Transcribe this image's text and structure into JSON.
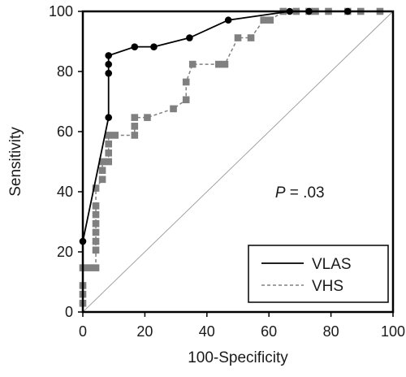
{
  "chart_data": {
    "type": "line",
    "xlabel": "100-Specificity",
    "ylabel": "Sensitivity",
    "xlim": [
      0,
      100
    ],
    "ylim": [
      0,
      100
    ],
    "x_ticks": [
      "0",
      "20",
      "40",
      "60",
      "80",
      "100"
    ],
    "y_ticks": [
      "0",
      "20",
      "40",
      "60",
      "80",
      "100"
    ],
    "grid": false,
    "legend_position": "bottom-right",
    "annotation": {
      "italic": "P",
      "rest": " = .03"
    },
    "reference_line": {
      "from": [
        0,
        0
      ],
      "to": [
        100,
        100
      ],
      "color": "#999999"
    },
    "series": [
      {
        "name": "VLAS",
        "color": "#000000",
        "line_style": "solid",
        "marker": "circle",
        "points": [
          [
            0,
            0
          ],
          [
            0,
            23.5
          ],
          [
            8.3,
            64.7
          ],
          [
            8.3,
            79.4
          ],
          [
            8.3,
            82.4
          ],
          [
            8.3,
            85.3
          ],
          [
            16.7,
            88.2
          ],
          [
            22.9,
            88.2
          ],
          [
            34.4,
            91.2
          ],
          [
            46.9,
            97.1
          ],
          [
            66.7,
            100
          ],
          [
            72.9,
            100
          ],
          [
            85.4,
            100
          ],
          [
            100,
            100
          ]
        ]
      },
      {
        "name": "VHS",
        "color": "#808080",
        "line_style": "dashed",
        "marker": "square",
        "points": [
          [
            0,
            0
          ],
          [
            0,
            2.9
          ],
          [
            0,
            5.9
          ],
          [
            0,
            8.8
          ],
          [
            0,
            14.7
          ],
          [
            2.1,
            14.7
          ],
          [
            4.2,
            14.7
          ],
          [
            4.2,
            20.6
          ],
          [
            4.2,
            23.5
          ],
          [
            4.2,
            26.5
          ],
          [
            4.2,
            29.4
          ],
          [
            4.2,
            32.4
          ],
          [
            4.2,
            35.3
          ],
          [
            4.2,
            41.2
          ],
          [
            6.3,
            44.1
          ],
          [
            6.3,
            47.1
          ],
          [
            6.3,
            50
          ],
          [
            8.3,
            50
          ],
          [
            8.3,
            52.9
          ],
          [
            8.3,
            55.9
          ],
          [
            8.3,
            58.8
          ],
          [
            10.4,
            58.8
          ],
          [
            16.7,
            58.8
          ],
          [
            16.7,
            61.8
          ],
          [
            16.7,
            64.7
          ],
          [
            20.8,
            64.7
          ],
          [
            29.2,
            67.6
          ],
          [
            33.3,
            70.6
          ],
          [
            33.3,
            76.5
          ],
          [
            35.4,
            82.4
          ],
          [
            43.8,
            82.4
          ],
          [
            45.8,
            82.4
          ],
          [
            50,
            91.2
          ],
          [
            54.2,
            91.2
          ],
          [
            58.3,
            97.1
          ],
          [
            60.4,
            97.1
          ],
          [
            64.6,
            100
          ],
          [
            68.8,
            100
          ],
          [
            72.9,
            100
          ],
          [
            75,
            100
          ],
          [
            79.2,
            100
          ],
          [
            85.4,
            100
          ],
          [
            89.6,
            100
          ],
          [
            95.8,
            100
          ],
          [
            100,
            100
          ]
        ]
      }
    ]
  }
}
